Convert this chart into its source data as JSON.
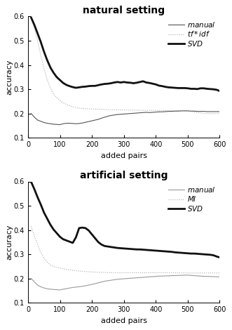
{
  "top_title": "natural setting",
  "bottom_title": "artificial setting",
  "xlabel": "added pairs",
  "ylabel": "accuracy",
  "xlim": [
    0,
    600
  ],
  "ylim": [
    0.1,
    0.6
  ],
  "yticks": [
    0.1,
    0.2,
    0.3,
    0.4,
    0.5,
    0.6
  ],
  "xticks": [
    0,
    100,
    200,
    300,
    400,
    500,
    600
  ],
  "top_manual_x": [
    10,
    20,
    30,
    40,
    50,
    60,
    70,
    80,
    90,
    100,
    110,
    120,
    130,
    140,
    150,
    160,
    170,
    180,
    190,
    200,
    210,
    220,
    230,
    240,
    250,
    260,
    270,
    280,
    290,
    300,
    310,
    320,
    330,
    340,
    350,
    360,
    370,
    380,
    390,
    400,
    410,
    420,
    430,
    440,
    450,
    460,
    470,
    480,
    490,
    500,
    510,
    520,
    530,
    540,
    550,
    560,
    570,
    580,
    590,
    600
  ],
  "top_manual_y": [
    0.2,
    0.185,
    0.173,
    0.168,
    0.163,
    0.16,
    0.158,
    0.156,
    0.155,
    0.154,
    0.158,
    0.16,
    0.16,
    0.159,
    0.158,
    0.159,
    0.161,
    0.164,
    0.167,
    0.17,
    0.173,
    0.176,
    0.181,
    0.185,
    0.189,
    0.192,
    0.194,
    0.196,
    0.197,
    0.198,
    0.199,
    0.2,
    0.201,
    0.202,
    0.203,
    0.204,
    0.205,
    0.204,
    0.205,
    0.206,
    0.207,
    0.207,
    0.208,
    0.209,
    0.209,
    0.21,
    0.21,
    0.211,
    0.211,
    0.211,
    0.21,
    0.21,
    0.209,
    0.209,
    0.209,
    0.208,
    0.208,
    0.208,
    0.208,
    0.208
  ],
  "top_tfidf_x": [
    10,
    20,
    30,
    40,
    50,
    60,
    70,
    80,
    90,
    100,
    110,
    120,
    130,
    140,
    150,
    160,
    180,
    200,
    220,
    240,
    260,
    280,
    300,
    320,
    340,
    360,
    380,
    400,
    450,
    500,
    550,
    600
  ],
  "top_tfidf_y": [
    0.595,
    0.55,
    0.5,
    0.44,
    0.385,
    0.34,
    0.305,
    0.28,
    0.265,
    0.253,
    0.245,
    0.238,
    0.232,
    0.228,
    0.224,
    0.222,
    0.22,
    0.219,
    0.218,
    0.217,
    0.216,
    0.215,
    0.215,
    0.214,
    0.214,
    0.213,
    0.213,
    0.213,
    0.212,
    0.211,
    0.2,
    0.2
  ],
  "top_svd_x": [
    10,
    20,
    30,
    40,
    50,
    60,
    70,
    80,
    90,
    100,
    110,
    120,
    130,
    140,
    150,
    160,
    170,
    180,
    190,
    200,
    210,
    220,
    230,
    240,
    250,
    260,
    270,
    280,
    290,
    300,
    310,
    320,
    330,
    340,
    350,
    360,
    370,
    380,
    390,
    400,
    410,
    420,
    430,
    440,
    450,
    460,
    470,
    480,
    490,
    500,
    510,
    520,
    530,
    540,
    550,
    560,
    570,
    580,
    590,
    600
  ],
  "top_svd_y": [
    0.595,
    0.565,
    0.53,
    0.495,
    0.455,
    0.42,
    0.39,
    0.368,
    0.35,
    0.338,
    0.326,
    0.318,
    0.313,
    0.309,
    0.306,
    0.308,
    0.31,
    0.311,
    0.313,
    0.314,
    0.314,
    0.317,
    0.32,
    0.322,
    0.323,
    0.325,
    0.328,
    0.33,
    0.328,
    0.33,
    0.328,
    0.327,
    0.325,
    0.327,
    0.33,
    0.333,
    0.328,
    0.326,
    0.323,
    0.32,
    0.315,
    0.313,
    0.31,
    0.308,
    0.307,
    0.306,
    0.305,
    0.305,
    0.305,
    0.304,
    0.302,
    0.302,
    0.301,
    0.304,
    0.304,
    0.302,
    0.301,
    0.3,
    0.298,
    0.293
  ],
  "bot_manual_x": [
    10,
    20,
    30,
    40,
    50,
    60,
    70,
    80,
    90,
    100,
    110,
    120,
    130,
    140,
    150,
    160,
    170,
    180,
    190,
    200,
    210,
    220,
    230,
    240,
    250,
    260,
    270,
    280,
    290,
    300,
    310,
    320,
    330,
    340,
    350,
    360,
    370,
    380,
    390,
    400,
    410,
    420,
    430,
    440,
    450,
    460,
    470,
    480,
    490,
    500,
    510,
    520,
    530,
    540,
    550,
    560,
    570,
    580,
    590,
    600
  ],
  "bot_manual_y": [
    0.2,
    0.186,
    0.173,
    0.166,
    0.161,
    0.158,
    0.156,
    0.155,
    0.154,
    0.153,
    0.156,
    0.158,
    0.161,
    0.163,
    0.165,
    0.166,
    0.168,
    0.17,
    0.173,
    0.176,
    0.179,
    0.182,
    0.186,
    0.189,
    0.191,
    0.193,
    0.195,
    0.197,
    0.198,
    0.199,
    0.2,
    0.201,
    0.202,
    0.203,
    0.204,
    0.205,
    0.206,
    0.207,
    0.208,
    0.209,
    0.21,
    0.21,
    0.211,
    0.211,
    0.212,
    0.212,
    0.213,
    0.213,
    0.214,
    0.214,
    0.213,
    0.212,
    0.211,
    0.21,
    0.209,
    0.209,
    0.208,
    0.208,
    0.207,
    0.207
  ],
  "bot_mi_x": [
    10,
    20,
    30,
    40,
    50,
    60,
    70,
    80,
    90,
    100,
    110,
    120,
    130,
    140,
    160,
    180,
    200,
    220,
    240,
    260,
    280,
    300,
    320,
    340,
    360,
    380,
    400,
    450,
    500,
    550,
    600
  ],
  "bot_mi_y": [
    0.415,
    0.375,
    0.34,
    0.308,
    0.284,
    0.267,
    0.256,
    0.25,
    0.246,
    0.243,
    0.24,
    0.238,
    0.236,
    0.234,
    0.231,
    0.229,
    0.227,
    0.226,
    0.225,
    0.224,
    0.224,
    0.224,
    0.224,
    0.224,
    0.224,
    0.224,
    0.224,
    0.224,
    0.223,
    0.223,
    0.223
  ],
  "bot_svd_x": [
    10,
    20,
    30,
    40,
    50,
    60,
    70,
    80,
    90,
    100,
    110,
    120,
    130,
    140,
    150,
    160,
    170,
    180,
    190,
    200,
    210,
    220,
    230,
    240,
    250,
    260,
    270,
    280,
    290,
    300,
    310,
    320,
    330,
    340,
    350,
    360,
    370,
    380,
    390,
    400,
    410,
    420,
    430,
    440,
    450,
    460,
    470,
    480,
    490,
    500,
    510,
    520,
    530,
    540,
    550,
    560,
    570,
    580,
    590,
    600
  ],
  "bot_svd_y": [
    0.598,
    0.568,
    0.535,
    0.505,
    0.472,
    0.447,
    0.422,
    0.402,
    0.387,
    0.372,
    0.362,
    0.357,
    0.352,
    0.347,
    0.37,
    0.408,
    0.41,
    0.408,
    0.398,
    0.382,
    0.366,
    0.35,
    0.34,
    0.334,
    0.332,
    0.33,
    0.328,
    0.326,
    0.325,
    0.324,
    0.323,
    0.322,
    0.321,
    0.32,
    0.32,
    0.319,
    0.318,
    0.317,
    0.316,
    0.315,
    0.314,
    0.313,
    0.312,
    0.311,
    0.31,
    0.308,
    0.307,
    0.306,
    0.305,
    0.304,
    0.303,
    0.303,
    0.302,
    0.301,
    0.3,
    0.299,
    0.298,
    0.296,
    0.291,
    0.287
  ],
  "color_manual_top": "#555555",
  "color_tfidf": "#aaaaaa",
  "color_svd_top": "#111111",
  "color_manual_bot": "#999999",
  "color_mi": "#aaaaaa",
  "color_svd_bot": "#111111",
  "lw_thin": 0.8,
  "lw_thick": 2.0,
  "lw_dot": 0.8,
  "background_color": "#ffffff",
  "title_fontsize": 10,
  "label_fontsize": 8,
  "tick_fontsize": 7,
  "legend_fontsize": 7.5
}
